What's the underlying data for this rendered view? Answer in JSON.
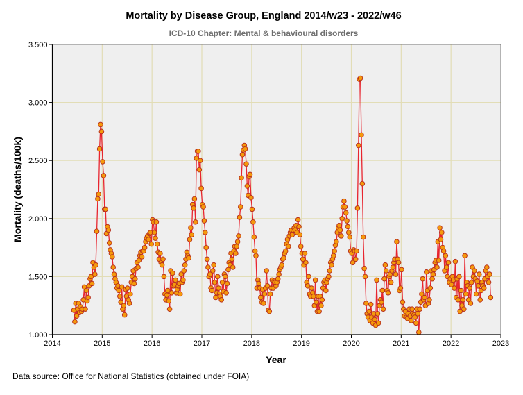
{
  "chart_data": {
    "type": "line",
    "title": "Mortality by Disease Group, England 2014/w23 - 2022/w46",
    "subtitle": "ICD-10 Chapter: Mental & behavioural disorders",
    "xlabel": "Year",
    "ylabel": "Mortality (deaths/100k)",
    "xlim": [
      2014,
      2023
    ],
    "ylim": [
      1.0,
      3.5
    ],
    "x_ticks": [
      "2014",
      "2015",
      "2016",
      "2017",
      "2018",
      "2019",
      "2020",
      "2021",
      "2022",
      "2023"
    ],
    "y_ticks": [
      {
        "value": 1.0,
        "label": "1.000"
      },
      {
        "value": 1.5,
        "label": "1.500"
      },
      {
        "value": 2.0,
        "label": "2.000"
      },
      {
        "value": 2.5,
        "label": "2.500"
      },
      {
        "value": 3.0,
        "label": "3.000"
      },
      {
        "value": 3.5,
        "label": "3.500"
      }
    ],
    "grid": true,
    "colors": {
      "line": "#e8252f",
      "marker_fill": "#f59a0c",
      "marker_edge": "#b8321e",
      "plot_bg": "#efefef",
      "grid": "#e2ddb6"
    },
    "series": [
      {
        "name": "Mortality (deaths/100k)",
        "start_year": 2014,
        "start_week": 23,
        "weeks_per_year": 52,
        "values": [
          1.21,
          1.11,
          1.27,
          1.16,
          1.22,
          1.27,
          1.19,
          1.24,
          1.2,
          1.22,
          1.3,
          1.41,
          1.22,
          1.38,
          1.29,
          1.32,
          1.42,
          1.48,
          1.5,
          1.44,
          1.62,
          1.58,
          1.52,
          1.6,
          1.89,
          2.17,
          2.21,
          2.6,
          2.81,
          2.75,
          2.49,
          2.37,
          2.08,
          2.08,
          1.87,
          1.93,
          1.9,
          1.79,
          1.73,
          1.7,
          1.67,
          1.58,
          1.52,
          1.48,
          1.45,
          1.4,
          1.42,
          1.38,
          1.33,
          1.28,
          1.41,
          1.22,
          1.25,
          1.17,
          1.39,
          1.33,
          1.4,
          1.3,
          1.27,
          1.35,
          1.45,
          1.5,
          1.55,
          1.44,
          1.48,
          1.57,
          1.62,
          1.58,
          1.64,
          1.68,
          1.71,
          1.67,
          1.72,
          1.72,
          1.75,
          1.8,
          1.83,
          1.85,
          1.82,
          1.87,
          1.88,
          1.78,
          1.99,
          1.97,
          1.88,
          1.83,
          1.97,
          1.78,
          1.71,
          1.65,
          1.7,
          1.62,
          1.6,
          1.65,
          1.5,
          1.35,
          1.3,
          1.34,
          1.38,
          1.29,
          1.22,
          1.55,
          1.36,
          1.53,
          1.42,
          1.43,
          1.47,
          1.36,
          1.39,
          1.42,
          1.44,
          1.35,
          1.52,
          1.45,
          1.47,
          1.55,
          1.6,
          1.65,
          1.71,
          1.68,
          1.66,
          1.82,
          1.92,
          1.86,
          2.12,
          2.09,
          2.17,
          1.97,
          2.52,
          2.58,
          2.58,
          2.42,
          2.5,
          2.26,
          2.12,
          2.1,
          1.98,
          1.88,
          1.75,
          1.65,
          1.58,
          1.5,
          1.52,
          1.4,
          1.38,
          1.55,
          1.6,
          1.45,
          1.32,
          1.36,
          1.5,
          1.4,
          1.35,
          1.33,
          1.3,
          1.45,
          1.37,
          1.52,
          1.5,
          1.36,
          1.44,
          1.56,
          1.62,
          1.6,
          1.7,
          1.65,
          1.58,
          1.72,
          1.76,
          1.7,
          1.76,
          1.8,
          1.85,
          2.01,
          2.1,
          2.35,
          2.55,
          2.59,
          2.63,
          2.6,
          2.47,
          2.28,
          2.2,
          2.36,
          2.38,
          2.18,
          2.08,
          1.97,
          1.84,
          1.72,
          1.68,
          1.4,
          1.47,
          1.44,
          1.4,
          1.32,
          1.28,
          1.39,
          1.27,
          1.35,
          1.4,
          1.55,
          1.42,
          1.21,
          1.2,
          1.35,
          1.4,
          1.47,
          1.4,
          1.46,
          1.45,
          1.42,
          1.45,
          1.48,
          1.52,
          1.56,
          1.58,
          1.6,
          1.65,
          1.66,
          1.7,
          1.72,
          1.78,
          1.82,
          1.76,
          1.85,
          1.88,
          1.9,
          1.86,
          1.9,
          1.92,
          1.9,
          1.94,
          1.88,
          1.99,
          1.93,
          1.86,
          1.76,
          1.7,
          1.65,
          1.6,
          1.7,
          1.62,
          1.45,
          1.42,
          1.5,
          1.35,
          1.33,
          1.4,
          1.36,
          1.33,
          1.25,
          1.47,
          1.28,
          1.2,
          1.33,
          1.2,
          1.33,
          1.25,
          1.3,
          1.4,
          1.45,
          1.47,
          1.38,
          1.45,
          1.48,
          1.5,
          1.55,
          1.62,
          1.6,
          1.65,
          1.68,
          1.72,
          1.77,
          1.8,
          1.88,
          1.92,
          1.94,
          1.9,
          1.85,
          2.0,
          2.1,
          2.15,
          2.1,
          2.05,
          1.98,
          1.93,
          1.88,
          1.84,
          1.72,
          1.7,
          1.62,
          1.73,
          1.72,
          1.65,
          1.72,
          2.09,
          2.63,
          3.2,
          3.21,
          2.72,
          2.3,
          1.84,
          1.57,
          1.5,
          1.27,
          1.18,
          1.15,
          1.2,
          1.12,
          1.26,
          1.15,
          1.1,
          1.18,
          1.13,
          1.08,
          1.47,
          1.18,
          1.1,
          1.25,
          1.3,
          1.28,
          1.38,
          1.22,
          1.48,
          1.6,
          1.55,
          1.38,
          1.36,
          1.5,
          1.52,
          1.45,
          1.55,
          1.58,
          1.62,
          1.65,
          1.52,
          1.8,
          1.65,
          1.62,
          1.38,
          1.4,
          1.56,
          1.28,
          1.22,
          1.16,
          1.2,
          1.15,
          1.14,
          1.18,
          1.22,
          1.16,
          1.12,
          1.22,
          1.18,
          1.17,
          1.15,
          1.1,
          1.22,
          1.18,
          1.02,
          1.22,
          1.28,
          1.35,
          1.48,
          1.3,
          1.32,
          1.25,
          1.54,
          1.38,
          1.27,
          1.3,
          1.4,
          1.55,
          1.48,
          1.52,
          1.56,
          1.62,
          1.64,
          1.58,
          1.8,
          1.64,
          1.92,
          1.82,
          1.88,
          1.75,
          1.72,
          1.55,
          1.68,
          1.58,
          1.5,
          1.62,
          1.45,
          1.48,
          1.43,
          1.5,
          1.47,
          1.4,
          1.63,
          1.32,
          1.48,
          1.3,
          1.5,
          1.2,
          1.38,
          1.25,
          1.3,
          1.22,
          1.68,
          1.35,
          1.45,
          1.42,
          1.3,
          1.4,
          1.27,
          1.45,
          1.58,
          1.5,
          1.55,
          1.48,
          1.35,
          1.46,
          1.42,
          1.52,
          1.3,
          1.38,
          1.45,
          1.42,
          1.4,
          1.48,
          1.55,
          1.58,
          1.5,
          1.45,
          1.52,
          1.32
        ]
      }
    ]
  },
  "footer": {
    "source": "Data source: Office for National Statistics (obtained under FOIA)"
  }
}
